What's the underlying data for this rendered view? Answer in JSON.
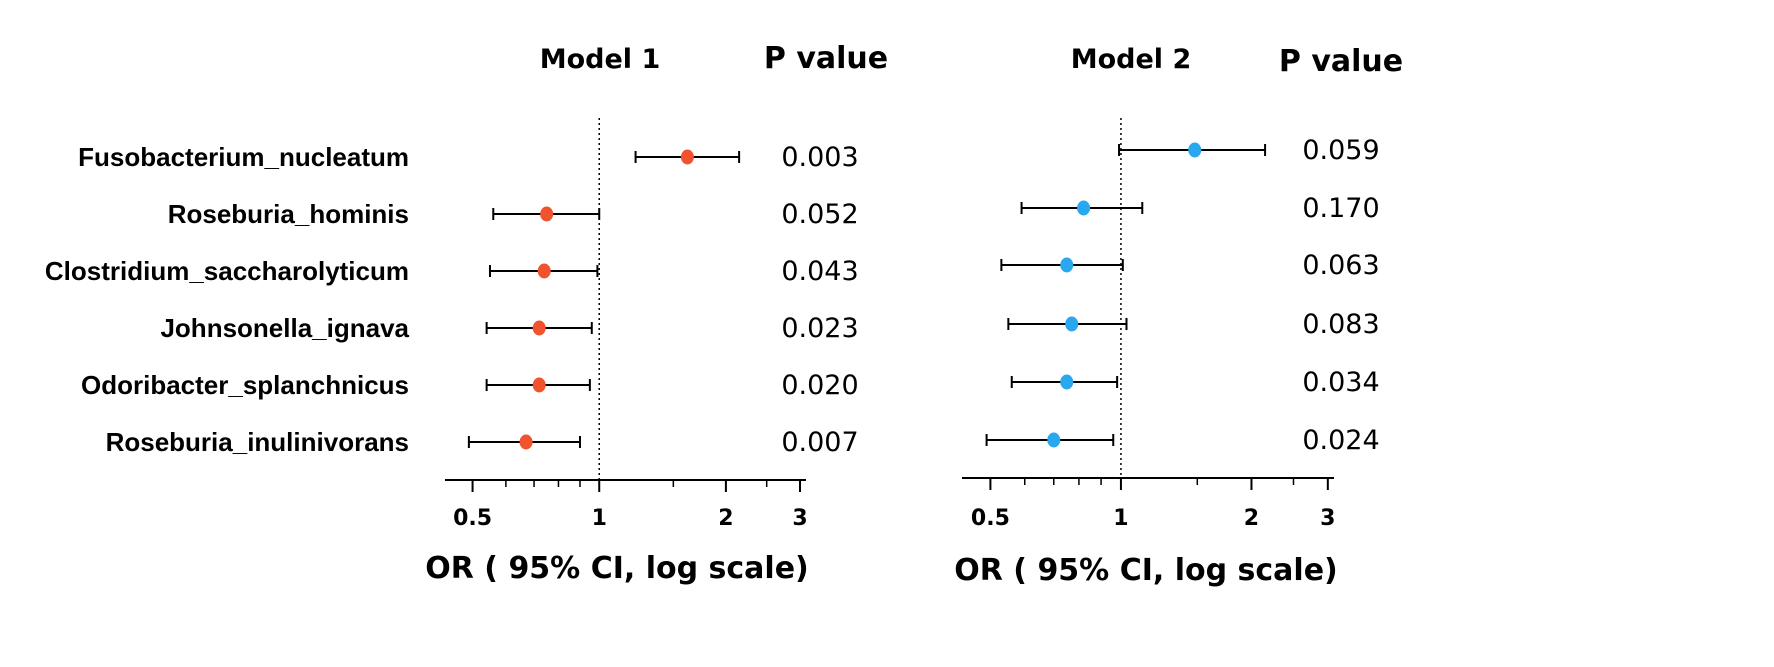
{
  "labels": [
    "Fusobacterium_nucleatum",
    "Roseburia_hominis",
    "Clostridium_saccharolyticum",
    "Johnsonella_ignava",
    "Odoribacter_splanchnicus",
    "Roseburia_inulinivorans"
  ],
  "p_value_header": "P value",
  "chart_data": [
    {
      "type": "forest",
      "title": "Model 1",
      "xlabel": "OR ( 95% CI, log scale)",
      "xscale": "log",
      "xlim": [
        0.43,
        3.1
      ],
      "reference_line": 1,
      "tick_values": [
        0.5,
        1,
        2,
        3
      ],
      "tick_labels": [
        "0.5",
        "1",
        "2",
        "3"
      ],
      "marker_color": "#f0532d",
      "rows": [
        {
          "label": "Fusobacterium_nucleatum",
          "or": 1.62,
          "ci_low": 1.22,
          "ci_high": 2.15,
          "p": "0.003"
        },
        {
          "label": "Roseburia_hominis",
          "or": 0.75,
          "ci_low": 0.56,
          "ci_high": 1.0,
          "p": "0.052"
        },
        {
          "label": "Clostridium_saccharolyticum",
          "or": 0.74,
          "ci_low": 0.55,
          "ci_high": 0.99,
          "p": "0.043"
        },
        {
          "label": "Johnsonella_ignava",
          "or": 0.72,
          "ci_low": 0.54,
          "ci_high": 0.96,
          "p": "0.023"
        },
        {
          "label": "Odoribacter_splanchnicus",
          "or": 0.72,
          "ci_low": 0.54,
          "ci_high": 0.95,
          "p": "0.020"
        },
        {
          "label": "Roseburia_inulinivorans",
          "or": 0.67,
          "ci_low": 0.49,
          "ci_high": 0.9,
          "p": "0.007"
        }
      ]
    },
    {
      "type": "forest",
      "title": "Model 2",
      "xlabel": "OR ( 95% CI, log scale)",
      "xscale": "log",
      "xlim": [
        0.43,
        3.1
      ],
      "reference_line": 1,
      "tick_values": [
        0.5,
        1,
        2,
        3
      ],
      "tick_labels": [
        "0.5",
        "1",
        "2",
        "3"
      ],
      "marker_color": "#29a8ef",
      "rows": [
        {
          "label": "Fusobacterium_nucleatum",
          "or": 1.48,
          "ci_low": 0.99,
          "ci_high": 2.15,
          "p": "0.059"
        },
        {
          "label": "Roseburia_hominis",
          "or": 0.82,
          "ci_low": 0.59,
          "ci_high": 1.12,
          "p": "0.170"
        },
        {
          "label": "Clostridium_saccharolyticum",
          "or": 0.75,
          "ci_low": 0.53,
          "ci_high": 1.01,
          "p": "0.063"
        },
        {
          "label": "Johnsonella_ignava",
          "or": 0.77,
          "ci_low": 0.55,
          "ci_high": 1.03,
          "p": "0.083"
        },
        {
          "label": "Odoribacter_splanchnicus",
          "or": 0.75,
          "ci_low": 0.56,
          "ci_high": 0.98,
          "p": "0.034"
        },
        {
          "label": "Roseburia_inulinivorans",
          "or": 0.7,
          "ci_low": 0.49,
          "ci_high": 0.96,
          "p": "0.024"
        }
      ]
    }
  ]
}
